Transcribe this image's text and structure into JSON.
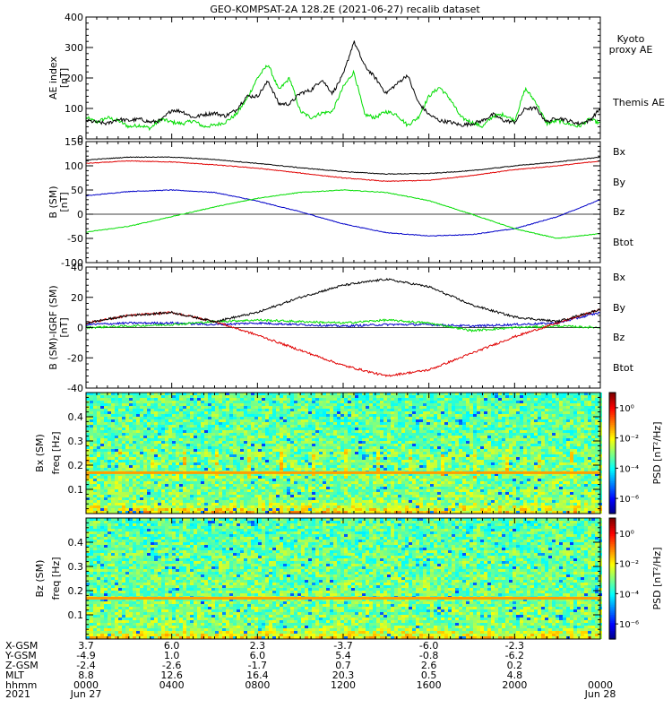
{
  "title": "GEO-KOMPSAT-2A 128.2E (2021-06-27) recalib dataset",
  "colors": {
    "black": "#000000",
    "red": "#e00000",
    "green": "#00dd00",
    "blue": "#0000c8"
  },
  "time_axis": {
    "major_ticks_hhmm": [
      "0000",
      "0400",
      "0800",
      "1200",
      "1600",
      "2000",
      "0000"
    ],
    "range_hours": [
      0,
      24
    ]
  },
  "chart_data": [
    {
      "type": "line",
      "panel": "ae",
      "ylabel": "AE index",
      "yunit": "[nT]",
      "ylim": [
        0,
        400
      ],
      "yticks": [
        0,
        100,
        200,
        300,
        400
      ],
      "series": [
        {
          "name": "Kyoto proxy AE",
          "color": "#00dd00",
          "x": [
            0,
            0.5,
            1,
            1.5,
            2,
            2.5,
            3,
            3.5,
            4,
            4.5,
            5,
            5.5,
            6,
            6.5,
            7,
            7.5,
            8,
            8.5,
            9,
            9.5,
            10,
            10.5,
            11,
            11.5,
            12,
            12.5,
            13,
            13.5,
            14,
            14.5,
            15,
            15.5,
            16,
            16.5,
            17,
            17.5,
            18,
            18.5,
            19,
            19.5,
            20,
            20.5,
            21,
            21.5,
            22,
            22.5,
            23,
            23.5,
            24
          ],
          "y": [
            70,
            55,
            70,
            60,
            40,
            45,
            35,
            65,
            55,
            50,
            60,
            40,
            45,
            55,
            80,
            130,
            200,
            245,
            160,
            200,
            90,
            70,
            85,
            90,
            170,
            220,
            80,
            70,
            90,
            80,
            45,
            70,
            140,
            170,
            130,
            70,
            55,
            40,
            75,
            80,
            60,
            165,
            120,
            50,
            60,
            50,
            40,
            65,
            50
          ]
        },
        {
          "name": "Themis AE",
          "color": "#000000",
          "x": [
            0,
            0.5,
            1,
            1.5,
            2,
            2.5,
            3,
            3.5,
            4,
            4.5,
            5,
            5.5,
            6,
            6.5,
            7,
            7.5,
            8,
            8.5,
            9,
            9.5,
            10,
            10.5,
            11,
            11.5,
            12,
            12.5,
            13,
            13.5,
            14,
            14.5,
            15,
            15.5,
            16,
            16.5,
            17,
            17.5,
            18,
            18.5,
            19,
            19.5,
            20,
            20.5,
            21,
            21.5,
            22,
            22.5,
            23,
            23.5,
            24
          ],
          "y": [
            60,
            55,
            50,
            65,
            60,
            65,
            55,
            60,
            95,
            90,
            70,
            80,
            85,
            75,
            95,
            140,
            140,
            190,
            115,
            115,
            150,
            160,
            195,
            150,
            210,
            320,
            240,
            200,
            150,
            180,
            210,
            120,
            80,
            60,
            55,
            45,
            50,
            60,
            80,
            60,
            55,
            100,
            100,
            55,
            70,
            60,
            50,
            60,
            100
          ]
        }
      ]
    },
    {
      "type": "line",
      "panel": "b_sm",
      "ylabel": "B (SM)",
      "yunit": "[nT]",
      "ylim": [
        -100,
        150
      ],
      "yticks": [
        -100,
        -50,
        0,
        50,
        100,
        150
      ],
      "series": [
        {
          "name": "Bx",
          "color": "#0000c8",
          "x": [
            0,
            2,
            4,
            6,
            8,
            10,
            12,
            14,
            16,
            18,
            20,
            22,
            24
          ],
          "y": [
            38,
            47,
            50,
            45,
            27,
            5,
            -20,
            -38,
            -45,
            -42,
            -30,
            -5,
            30
          ]
        },
        {
          "name": "By",
          "color": "#00dd00",
          "x": [
            0,
            2,
            4,
            6,
            8,
            10,
            12,
            14,
            16,
            18,
            20,
            22,
            24
          ],
          "y": [
            -37,
            -25,
            -5,
            15,
            33,
            45,
            50,
            45,
            28,
            0,
            -30,
            -50,
            -40
          ]
        },
        {
          "name": "Bz",
          "color": "#e00000",
          "x": [
            0,
            2,
            4,
            6,
            8,
            10,
            12,
            14,
            16,
            18,
            20,
            22,
            24
          ],
          "y": [
            105,
            110,
            108,
            102,
            95,
            85,
            75,
            68,
            70,
            80,
            92,
            100,
            110
          ]
        },
        {
          "name": "Btot",
          "color": "#000000",
          "x": [
            0,
            2,
            4,
            6,
            8,
            10,
            12,
            14,
            16,
            18,
            20,
            22,
            24
          ],
          "y": [
            112,
            118,
            118,
            113,
            105,
            96,
            88,
            83,
            84,
            90,
            100,
            108,
            118
          ]
        }
      ]
    },
    {
      "type": "line",
      "panel": "b_igrf",
      "ylabel": "B (SM)-IGRF (SM)",
      "yunit": "[nT]",
      "ylim": [
        -40,
        40
      ],
      "yticks": [
        -40,
        -20,
        0,
        20,
        40
      ],
      "series": [
        {
          "name": "Bx",
          "color": "#0000c8",
          "x": [
            0,
            2,
            4,
            6,
            8,
            10,
            12,
            14,
            16,
            18,
            20,
            22,
            24
          ],
          "y": [
            2,
            3,
            3,
            2,
            3,
            2,
            1,
            2,
            2,
            1,
            2,
            3,
            10
          ]
        },
        {
          "name": "By",
          "color": "#00dd00",
          "x": [
            0,
            2,
            4,
            6,
            8,
            10,
            12,
            14,
            16,
            18,
            20,
            22,
            24
          ],
          "y": [
            0,
            1,
            2,
            4,
            5,
            4,
            3,
            5,
            3,
            -2,
            0,
            1,
            0
          ]
        },
        {
          "name": "Bz",
          "color": "#e00000",
          "x": [
            0,
            2,
            4,
            6,
            8,
            10,
            12,
            14,
            16,
            18,
            20,
            22,
            24
          ],
          "y": [
            3,
            8,
            10,
            4,
            -5,
            -15,
            -25,
            -32,
            -28,
            -17,
            -6,
            3,
            12
          ]
        },
        {
          "name": "Btot",
          "color": "#000000",
          "x": [
            0,
            2,
            4,
            6,
            8,
            10,
            12,
            14,
            16,
            18,
            20,
            22,
            24
          ],
          "y": [
            3,
            8,
            10,
            4,
            10,
            20,
            28,
            32,
            27,
            15,
            7,
            4,
            12
          ]
        }
      ]
    },
    {
      "type": "heatmap",
      "panel": "spec_bx",
      "ylabel": "Bx (SM)",
      "yunit": "freq [Hz]",
      "ylim": [
        0,
        0.5
      ],
      "yticks": [
        0.1,
        0.2,
        0.3,
        0.4
      ],
      "line_freq": 0.167,
      "colorbar": {
        "label": "PSD [nT²/Hz]",
        "tick_labels": [
          "10⁰",
          "10⁻²",
          "10⁻⁴",
          "10⁻⁶"
        ],
        "tick_exponents": [
          0,
          -2,
          -4,
          -6
        ],
        "range_exp": [
          -7,
          1
        ]
      }
    },
    {
      "type": "heatmap",
      "panel": "spec_bz",
      "ylabel": "Bz (SM)",
      "yunit": "freq [Hz]",
      "ylim": [
        0,
        0.5
      ],
      "yticks": [
        0.1,
        0.2,
        0.3,
        0.4
      ],
      "line_freq": 0.167,
      "colorbar": {
        "label": "PSD [nT²/Hz]",
        "tick_labels": [
          "10⁰",
          "10⁻²",
          "10⁻⁴",
          "10⁻⁶"
        ],
        "tick_exponents": [
          0,
          -2,
          -4,
          -6
        ],
        "range_exp": [
          -7,
          1
        ]
      }
    }
  ],
  "ephemeris": {
    "rows": [
      {
        "label": "X-GSM",
        "values": [
          "3.7",
          "6.0",
          "2.3",
          "-3.7",
          "-6.0",
          "-2.3",
          ""
        ]
      },
      {
        "label": "Y-GSM",
        "values": [
          "-4.9",
          "1.0",
          "6.0",
          "5.4",
          "-0.8",
          "-6.2",
          ""
        ]
      },
      {
        "label": "Z-GSM",
        "values": [
          "-2.4",
          "-2.6",
          "-1.7",
          "0.7",
          "2.6",
          "0.2",
          ""
        ]
      },
      {
        "label": "MLT",
        "values": [
          "8.8",
          "12.6",
          "16.4",
          "20.3",
          "0.5",
          "4.8",
          ""
        ]
      },
      {
        "label": "hhmm",
        "values": [
          "0000",
          "0400",
          "0800",
          "1200",
          "1600",
          "2000",
          "0000"
        ]
      },
      {
        "label": "2021",
        "values": [
          "Jun 27",
          "",
          "",
          "",
          "",
          "",
          "Jun 28"
        ]
      }
    ]
  }
}
